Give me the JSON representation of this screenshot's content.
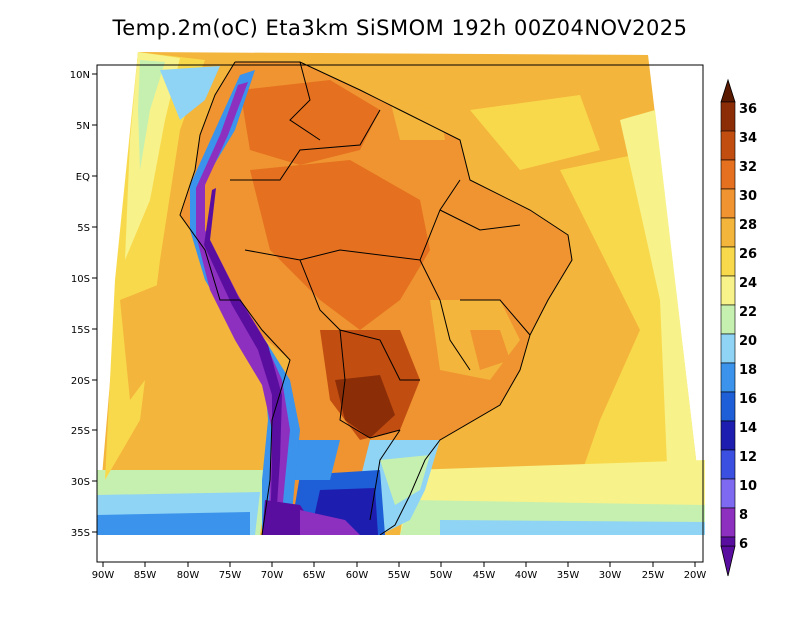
{
  "title": "Temp.2m(oC) Eta3km SiSMOM 192h 00Z04NOV2025",
  "map": {
    "lat_labels": [
      "10N",
      "5N",
      "EQ",
      "5S",
      "10S",
      "15S",
      "20S",
      "25S",
      "30S",
      "35S"
    ],
    "lon_labels": [
      "90W",
      "85W",
      "80W",
      "75W",
      "70W",
      "65W",
      "60W",
      "55W",
      "50W",
      "45W",
      "40W",
      "35W",
      "30W",
      "25W",
      "20W"
    ],
    "lat_range": [
      -38.5,
      11.5
    ],
    "lon_range": [
      -91,
      -19.5
    ]
  },
  "colorbar": {
    "levels": [
      6,
      8,
      10,
      12,
      14,
      16,
      18,
      20,
      22,
      24,
      26,
      28,
      30,
      32,
      34,
      36
    ],
    "colors": [
      "#5a0ea0",
      "#8d2fbf",
      "#7d6af0",
      "#3b4fe0",
      "#1d1db0",
      "#1e5ed7",
      "#3b93eb",
      "#8fd3f5",
      "#c6f0b0",
      "#f7f28a",
      "#f9d94c",
      "#f3b53b",
      "#ef9430",
      "#e5701f",
      "#c24d10",
      "#8b2e08",
      "#5a1a02"
    ]
  }
}
